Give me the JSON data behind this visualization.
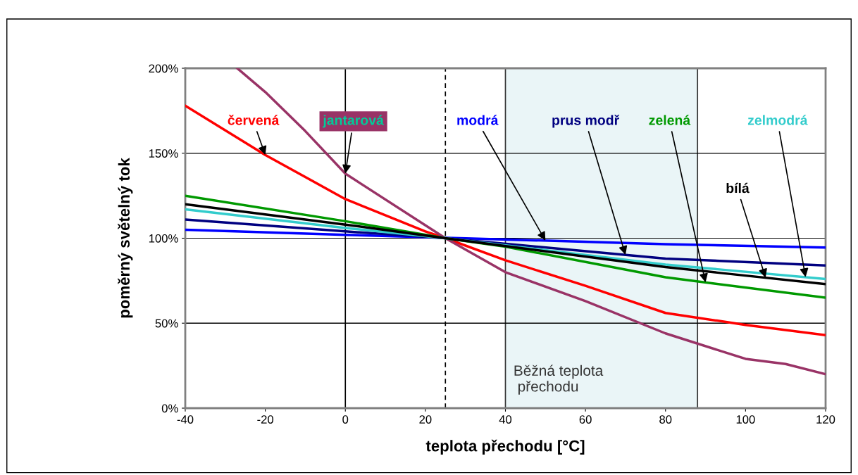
{
  "chart_data": {
    "type": "line",
    "xlabel": "teplota přechodu [°C]",
    "ylabel": "poměrný světelný tok",
    "xlim": [
      -40,
      120
    ],
    "xticks": [
      -40,
      -20,
      0,
      20,
      40,
      60,
      80,
      100,
      120
    ],
    "ylim": [
      0,
      200
    ],
    "yticks": [
      {
        "value": 0,
        "label": "0%"
      },
      {
        "value": 50,
        "label": "50%"
      },
      {
        "value": 100,
        "label": "100%"
      },
      {
        "value": 150,
        "label": "150%"
      },
      {
        "value": 200,
        "label": "200%"
      }
    ],
    "grid": "y",
    "legend": false,
    "marker": "none",
    "line_style": "solid",
    "series": [
      {
        "name": "červená",
        "color": "#ff0000",
        "x": [
          -40,
          -20,
          0,
          20,
          25,
          40,
          60,
          80,
          100,
          120
        ],
        "values": [
          178,
          149,
          123,
          104,
          100,
          87,
          72,
          56,
          49,
          43
        ]
      },
      {
        "name": "jantarová",
        "color": "#993366",
        "x": [
          -27,
          -20,
          -10,
          0,
          25,
          40,
          60,
          80,
          100,
          110,
          120
        ],
        "values": [
          200,
          186,
          163,
          138,
          100,
          80,
          63,
          44,
          29,
          26,
          20
        ]
      },
      {
        "name": "modrá",
        "color": "#0000ff",
        "x": [
          -40,
          0,
          80,
          120
        ],
        "values": [
          105,
          102,
          96.5,
          94.5
        ]
      },
      {
        "name": "prus modř",
        "color": "#000080",
        "x": [
          -40,
          0,
          25,
          80,
          120
        ],
        "values": [
          111,
          104,
          100,
          88,
          84
        ]
      },
      {
        "name": "zelená",
        "color": "#009900",
        "x": [
          -40,
          0,
          25,
          40,
          80,
          120
        ],
        "values": [
          125,
          110,
          100,
          95,
          77,
          65
        ]
      },
      {
        "name": "zelmodrá",
        "color": "#33cccc",
        "x": [
          -40,
          0,
          25,
          80,
          120
        ],
        "values": [
          117,
          106,
          100,
          84.5,
          76
        ]
      },
      {
        "name": "bílá",
        "color": "#000000",
        "x": [
          -40,
          0,
          25,
          80,
          120
        ],
        "values": [
          120,
          108,
          100,
          83,
          73
        ]
      }
    ],
    "ref_lines": [
      {
        "axis": "x",
        "value": 0,
        "color": "#000000",
        "line_style": "solid"
      },
      {
        "axis": "x",
        "value": 25,
        "color": "#000000",
        "line_style": "dashed"
      }
    ],
    "bands": [
      {
        "axis": "x",
        "from": 40,
        "to": 88,
        "label": "Běžná teplota\n přechodu",
        "color": "#eaf5f7"
      }
    ]
  }
}
